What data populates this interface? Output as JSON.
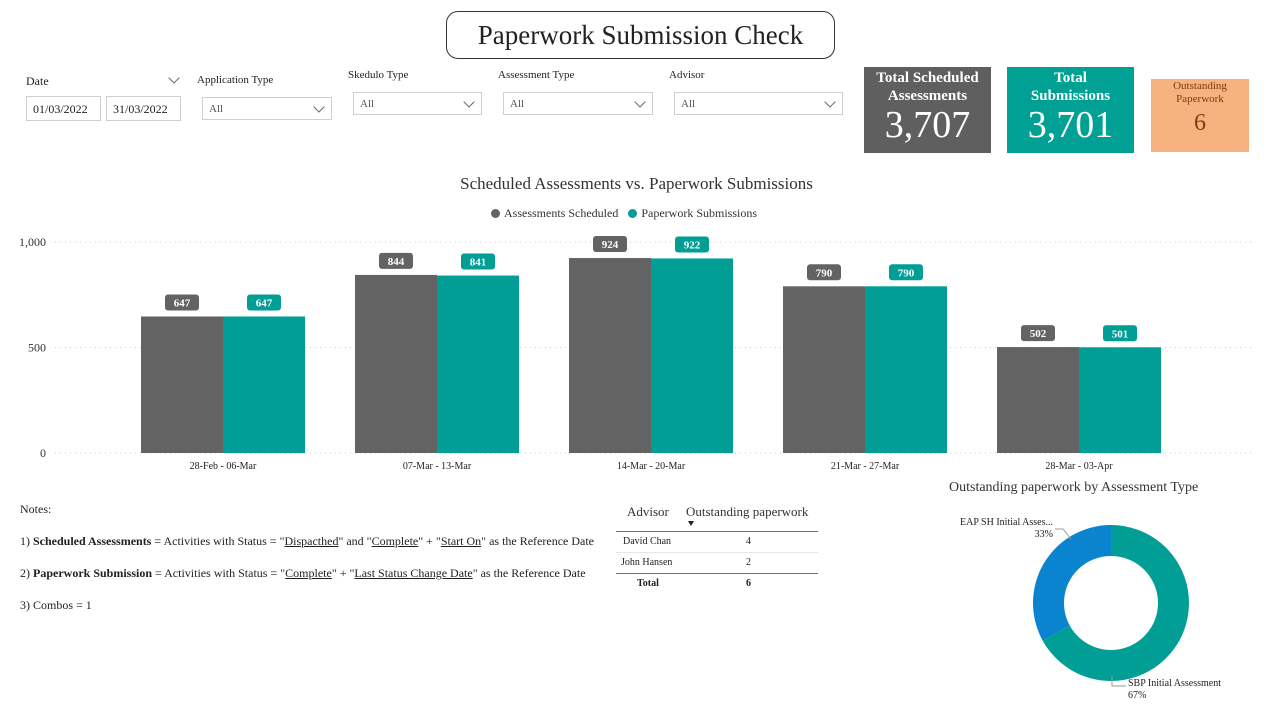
{
  "title": "Paperwork Submission Check",
  "filters": {
    "date": {
      "label": "Date",
      "start": "01/03/2022",
      "end": "31/03/2022"
    },
    "application_type": {
      "label": "Application Type",
      "value": "All"
    },
    "skedulo_type": {
      "label": "Skedulo Type",
      "value": "All"
    },
    "assessment_type": {
      "label": "Assessment Type",
      "value": "All"
    },
    "advisor": {
      "label": "Advisor",
      "value": "All"
    }
  },
  "kpis": {
    "scheduled": {
      "label_line1": "Total Scheduled",
      "label_line2": "Assessments",
      "value": "3,707",
      "color": "#5f5f5f"
    },
    "submissions": {
      "label_line1": "Total",
      "label_line2": "Submissions",
      "value": "3,701",
      "color": "#00a095"
    },
    "outstanding": {
      "label_line1": "Outstanding",
      "label_line2": "Paperwork",
      "value": "6",
      "color": "#f6b27f"
    }
  },
  "chart_data": {
    "type": "bar",
    "title": "Scheduled Assessments vs. Paperwork Submissions",
    "categories": [
      "28-Feb - 06-Mar",
      "07-Mar - 13-Mar",
      "14-Mar - 20-Mar",
      "21-Mar - 27-Mar",
      "28-Mar - 03-Apr"
    ],
    "series": [
      {
        "name": "Assessments Scheduled",
        "values": [
          647,
          844,
          924,
          790,
          502
        ],
        "color": "#636363"
      },
      {
        "name": "Paperwork Submissions",
        "values": [
          647,
          841,
          922,
          790,
          501
        ],
        "color": "#009e94"
      }
    ],
    "ylim": [
      0,
      1000
    ],
    "yticks": [
      0,
      500,
      1000
    ],
    "ytick_labels": [
      "0",
      "500",
      "1,000"
    ],
    "grid": true,
    "legend": "top-center"
  },
  "notes": {
    "heading": "Notes:",
    "n1_prefix": "1) ",
    "n1_bold": "Scheduled Assessments",
    "n1_a": " = Activities with Status = \"",
    "n1_u1": "Dispacthed",
    "n1_b": "\" and \"",
    "n1_u2": "Complete",
    "n1_c": "\" + \"",
    "n1_u3": "Start On",
    "n1_d": "\" as the Reference Date",
    "n2_prefix": "2) ",
    "n2_bold": "Paperwork Submission",
    "n2_a": " = Activities with Status = \"",
    "n2_u1": "Complete",
    "n2_b": "\" + \"",
    "n2_u2": "Last Status Change Date",
    "n2_c": "\" as the Reference Date",
    "n3": "3) Combos = 1"
  },
  "table": {
    "headers": [
      "Advisor",
      "Outstanding paperwork"
    ],
    "rows": [
      {
        "advisor": "David Chan",
        "value": "4"
      },
      {
        "advisor": "John Hansen",
        "value": "2"
      }
    ],
    "total": {
      "label": "Total",
      "value": "6"
    }
  },
  "donut": {
    "title": "Outstanding paperwork by Assessment Type",
    "slices": [
      {
        "name": "EAP SH Initial Asses...",
        "pct": "33%",
        "value": 0.33,
        "color": "#0a84cf"
      },
      {
        "name": "SBP Initial Assessment",
        "pct": "67%",
        "value": 0.67,
        "color": "#009e94"
      }
    ]
  }
}
